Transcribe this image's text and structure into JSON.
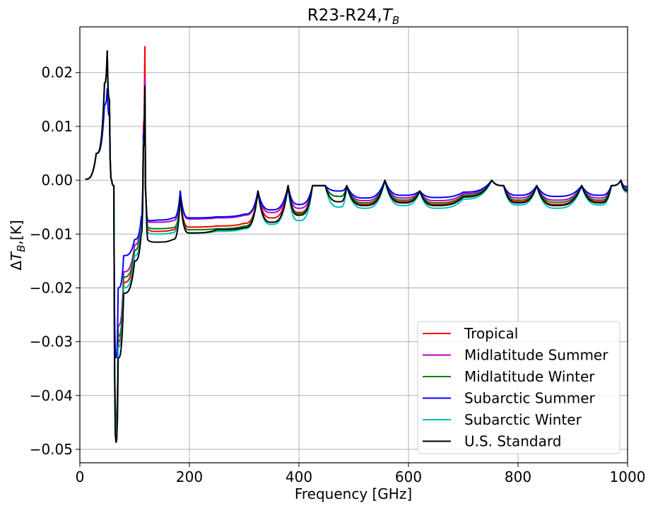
{
  "chart_data": {
    "type": "line",
    "title": "R23-R24,",
    "title_math": "T",
    "title_math_sub": "B",
    "xlabel": "Frequency [GHz]",
    "ylabel_parts": {
      "delta": "Δ",
      "sym": "T",
      "sub": "B",
      "unit": ",[K]"
    },
    "xlim": [
      0,
      1000
    ],
    "ylim": [
      -0.0525,
      0.0285
    ],
    "xticks": [
      0,
      200,
      400,
      600,
      800,
      1000
    ],
    "xtick_labels": [
      "0",
      "200",
      "400",
      "600",
      "800",
      "1000"
    ],
    "yticks": [
      -0.05,
      -0.04,
      -0.03,
      -0.02,
      -0.01,
      0.0,
      0.01,
      0.02
    ],
    "ytick_labels": [
      "−0.05",
      "−0.04",
      "−0.03",
      "−0.02",
      "−0.01",
      "0.00",
      "0.01",
      "0.02"
    ],
    "grid": true,
    "legend_position": "lower-right",
    "peak_lines": [
      118.75,
      183.31,
      325.15,
      380.2,
      424.76,
      448.0,
      474.69,
      487.25,
      556.94,
      620.7,
      752.03,
      773.84,
      834.15,
      916.17,
      970.32,
      987.93
    ],
    "series": [
      {
        "name": "Tropical",
        "color": "#ff0000",
        "x": [
          10,
          30,
          45,
          50,
          54,
          58,
          62,
          66,
          70,
          80,
          100,
          112,
          116,
          118.75,
          121,
          125,
          140,
          170,
          183.31,
          200,
          250,
          300,
          325.15,
          350,
          380.2,
          400,
          424.76,
          448.0,
          474.69,
          487.25,
          520,
          556.94,
          590,
          620.7,
          650,
          700,
          752.03,
          773.84,
          800,
          834.15,
          870,
          916.17,
          950,
          970.32,
          987.93,
          1000
        ],
        "y": [
          0.0002,
          0.005,
          0.018,
          0.024,
          0.015,
          0.0,
          -0.001,
          -0.046,
          -0.03,
          -0.019,
          -0.013,
          -0.007,
          0.01,
          0.0248,
          -0.004,
          -0.0092,
          -0.0095,
          -0.0092,
          -0.003,
          -0.0087,
          -0.0085,
          -0.008,
          -0.002,
          -0.007,
          -0.001,
          -0.006,
          -0.001,
          -0.001,
          -0.003,
          -0.001,
          -0.0045,
          0.0,
          -0.004,
          -0.002,
          -0.0045,
          -0.003,
          0.0,
          -0.001,
          -0.004,
          -0.001,
          -0.0045,
          -0.001,
          -0.004,
          -0.001,
          0.0,
          -0.002
        ]
      },
      {
        "name": "Midlatitude Summer",
        "color": "#c000c0",
        "x": [
          10,
          30,
          45,
          50,
          54,
          58,
          62,
          66,
          70,
          80,
          100,
          112,
          116,
          118.75,
          121,
          125,
          140,
          170,
          183.31,
          200,
          250,
          300,
          325.15,
          350,
          380.2,
          400,
          424.76,
          448.0,
          474.69,
          487.25,
          520,
          556.94,
          590,
          620.7,
          650,
          700,
          752.03,
          773.84,
          800,
          834.15,
          870,
          916.17,
          950,
          970.32,
          987.93,
          1000
        ],
        "y": [
          0.0002,
          0.005,
          0.018,
          0.024,
          0.015,
          0.0,
          -0.001,
          -0.044,
          -0.027,
          -0.017,
          -0.012,
          -0.007,
          0.009,
          0.019,
          -0.004,
          -0.0078,
          -0.0078,
          -0.0075,
          -0.002,
          -0.0072,
          -0.007,
          -0.0065,
          -0.002,
          -0.006,
          -0.001,
          -0.0052,
          -0.001,
          -0.001,
          -0.003,
          -0.001,
          -0.0038,
          0.0,
          -0.0033,
          -0.002,
          -0.0038,
          -0.0025,
          0.0,
          -0.001,
          -0.0033,
          -0.001,
          -0.0037,
          -0.001,
          -0.0033,
          -0.001,
          0.0,
          -0.0015
        ]
      },
      {
        "name": "Midlatitude Winter",
        "color": "#008000",
        "x": [
          10,
          30,
          45,
          50,
          54,
          58,
          62,
          66,
          70,
          80,
          100,
          112,
          116,
          118.75,
          121,
          125,
          140,
          170,
          183.31,
          200,
          250,
          300,
          325.15,
          350,
          380.2,
          400,
          424.76,
          448.0,
          474.69,
          487.25,
          520,
          556.94,
          590,
          620.7,
          650,
          700,
          752.03,
          773.84,
          800,
          834.15,
          870,
          916.17,
          950,
          970.32,
          987.93,
          1000
        ],
        "y": [
          0.0002,
          0.005,
          0.018,
          0.024,
          0.015,
          0.0,
          -0.001,
          -0.045,
          -0.029,
          -0.018,
          -0.013,
          -0.008,
          0.008,
          0.016,
          -0.004,
          -0.0088,
          -0.009,
          -0.0088,
          -0.003,
          -0.0092,
          -0.009,
          -0.0085,
          -0.002,
          -0.0078,
          -0.001,
          -0.0062,
          -0.001,
          -0.001,
          -0.003,
          -0.001,
          -0.0042,
          0.0,
          -0.0037,
          -0.002,
          -0.0042,
          -0.0028,
          0.0,
          -0.001,
          -0.0037,
          -0.001,
          -0.0041,
          -0.001,
          -0.0037,
          -0.001,
          0.0,
          -0.0017
        ]
      },
      {
        "name": "Subarctic Summer",
        "color": "#0000ff",
        "x": [
          10,
          30,
          45,
          50,
          54,
          58,
          62,
          66,
          70,
          80,
          100,
          112,
          116,
          118.75,
          121,
          125,
          140,
          170,
          183.31,
          200,
          250,
          300,
          325.15,
          350,
          380.2,
          400,
          424.76,
          448.0,
          474.69,
          487.25,
          520,
          556.94,
          590,
          620.7,
          650,
          700,
          752.03,
          773.84,
          800,
          834.15,
          870,
          916.17,
          950,
          970.32,
          987.93,
          1000
        ],
        "y": [
          0.0002,
          0.005,
          0.014,
          0.017,
          0.012,
          0.0,
          -0.001,
          -0.033,
          -0.02,
          -0.014,
          -0.011,
          -0.007,
          0.008,
          0.015,
          -0.004,
          -0.0075,
          -0.0074,
          -0.007,
          -0.002,
          -0.007,
          -0.0068,
          -0.0063,
          -0.002,
          -0.0055,
          -0.001,
          -0.0045,
          -0.001,
          -0.001,
          -0.002,
          -0.001,
          -0.0033,
          0.0,
          -0.0028,
          -0.002,
          -0.0032,
          -0.0022,
          0.0,
          -0.001,
          -0.0028,
          -0.001,
          -0.003,
          -0.001,
          -0.0028,
          -0.001,
          0.0,
          -0.0012
        ]
      },
      {
        "name": "Subarctic Winter",
        "color": "#00bfbf",
        "x": [
          10,
          30,
          45,
          50,
          54,
          58,
          62,
          66,
          70,
          80,
          100,
          112,
          116,
          118.75,
          121,
          125,
          140,
          170,
          183.31,
          200,
          250,
          300,
          325.15,
          350,
          380.2,
          400,
          424.76,
          448.0,
          474.69,
          487.25,
          520,
          556.94,
          590,
          620.7,
          650,
          700,
          752.03,
          773.84,
          800,
          834.15,
          870,
          916.17,
          950,
          970.32,
          987.93,
          1000
        ],
        "y": [
          0.0002,
          0.005,
          0.018,
          0.024,
          0.015,
          0.0,
          -0.001,
          -0.047,
          -0.031,
          -0.02,
          -0.014,
          -0.009,
          0.007,
          0.014,
          -0.004,
          -0.0098,
          -0.01,
          -0.0097,
          -0.003,
          -0.0098,
          -0.0095,
          -0.009,
          -0.002,
          -0.0082,
          -0.001,
          -0.0075,
          -0.001,
          -0.001,
          -0.005,
          -0.001,
          -0.0052,
          0.0,
          -0.0047,
          -0.002,
          -0.0052,
          -0.0035,
          0.0,
          -0.001,
          -0.0046,
          -0.001,
          -0.0052,
          -0.001,
          -0.0046,
          -0.001,
          0.0,
          -0.0022
        ]
      },
      {
        "name": "U.S. Standard",
        "color": "#000000",
        "x": [
          10,
          30,
          45,
          50,
          54,
          58,
          62,
          66,
          70,
          80,
          100,
          112,
          116,
          118.75,
          121,
          125,
          140,
          170,
          183.31,
          200,
          250,
          300,
          325.15,
          350,
          380.2,
          400,
          424.76,
          448.0,
          474.69,
          487.25,
          520,
          556.94,
          590,
          620.7,
          650,
          700,
          752.03,
          773.84,
          800,
          834.15,
          870,
          916.17,
          950,
          970.32,
          987.93,
          1000
        ],
        "y": [
          0.0002,
          0.005,
          0.018,
          0.024,
          0.015,
          0.0,
          -0.001,
          -0.0487,
          -0.033,
          -0.021,
          -0.015,
          -0.01,
          0.006,
          0.0175,
          -0.004,
          -0.0112,
          -0.0115,
          -0.011,
          -0.003,
          -0.0098,
          -0.0092,
          -0.0088,
          -0.002,
          -0.0078,
          -0.001,
          -0.0065,
          -0.001,
          -0.001,
          -0.004,
          -0.001,
          -0.0047,
          0.0,
          -0.0042,
          -0.002,
          -0.0047,
          -0.0031,
          0.0,
          -0.001,
          -0.0042,
          -0.001,
          -0.0047,
          -0.001,
          -0.0042,
          -0.001,
          0.0,
          -0.0019
        ]
      }
    ]
  }
}
